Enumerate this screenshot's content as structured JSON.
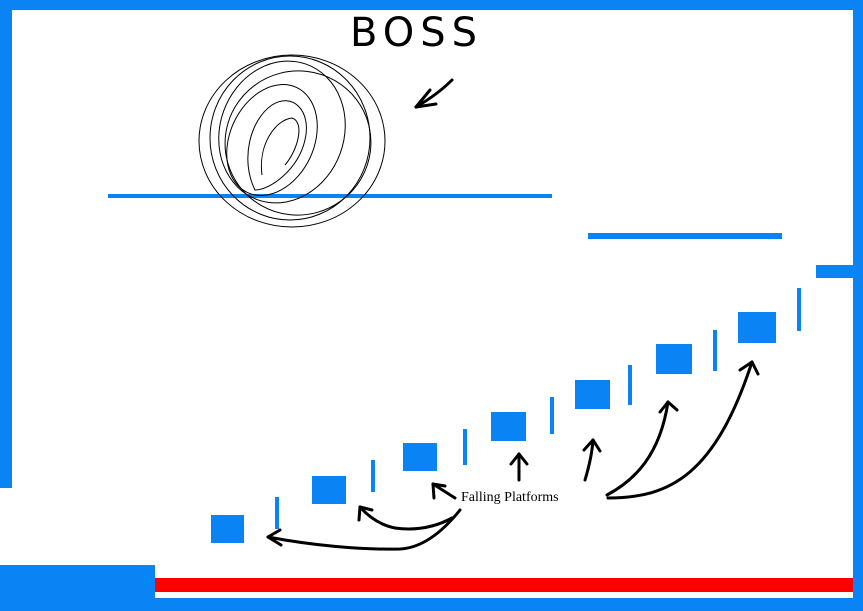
{
  "scene": {
    "boss_label": "BOSS",
    "platforms_label": "Falling Platforms",
    "colors": {
      "wall": "#0a84f5",
      "hazard": "#ff0000",
      "ink": "#000000",
      "background": "#ffffff"
    },
    "icons": {
      "boss": "scribbled-circle-boss",
      "arrow": "hand-drawn-arrow"
    }
  }
}
